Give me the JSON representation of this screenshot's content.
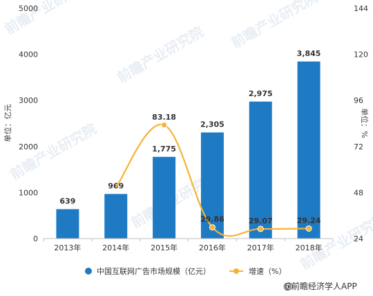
{
  "chart_data": {
    "type": "bar",
    "categories": [
      "2013年",
      "2014年",
      "2015年",
      "2016年",
      "2017年",
      "2018年"
    ],
    "series": [
      {
        "name": "中国互联网广告市场规模（亿元）",
        "type": "bar",
        "axis": "left",
        "values": [
          639,
          969,
          1775,
          2305,
          2975,
          3845
        ],
        "labels": [
          "639",
          "969",
          "1,775",
          "2,305",
          "2,975",
          "3,845"
        ],
        "color": "#1f7ac4"
      },
      {
        "name": "增速（%）",
        "type": "line",
        "axis": "right",
        "values": [
          null,
          50.6,
          83.18,
          29.86,
          29.07,
          29.24
        ],
        "labels": [
          null,
          null,
          "83.18",
          "29.86",
          "29.07",
          "29.24"
        ],
        "color": "#f5b335"
      }
    ],
    "ylabel": "单位：亿元",
    "ylim": [
      0,
      5000
    ],
    "yticks": [
      "0",
      "1000",
      "2000",
      "3000",
      "4000",
      "5000"
    ],
    "y2label": "单位：%",
    "y2lim": [
      24,
      144
    ],
    "y2ticks": [
      "24",
      "48",
      "72",
      "96",
      "120",
      "144"
    ],
    "grid": false,
    "legend": "bottom"
  },
  "source": "@前瞻经济学人APP",
  "watermark": "前瞻产业研究院"
}
